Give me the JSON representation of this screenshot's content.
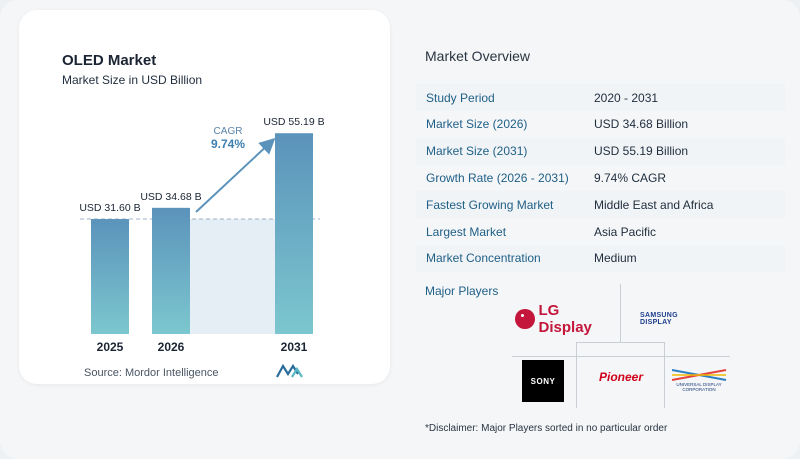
{
  "chart_data": {
    "type": "bar",
    "title": "OLED Market",
    "subtitle": "Market Size in USD Billion",
    "categories": [
      "2025",
      "2026",
      "2031"
    ],
    "values": [
      31.6,
      34.68,
      55.19
    ],
    "value_labels": [
      "USD 31.60 B",
      "USD 34.68 B",
      "USD 55.19 B"
    ],
    "ylim": [
      0,
      58
    ],
    "cagr_label": "CAGR",
    "cagr_value": "9.74%",
    "colors": {
      "bar_top": "#5b93bb",
      "bar_bottom": "#7cc7cf",
      "band": "#e6eef5",
      "arrow": "#5b93bb",
      "dashed": "#9bb3c8"
    }
  },
  "source": "Source:  Mordor Intelligence",
  "overview": {
    "title": "Market Overview",
    "rows": [
      {
        "label": "Study Period",
        "value": "2020 - 2031"
      },
      {
        "label": "Market Size (2026)",
        "value": "USD 34.68 Billion"
      },
      {
        "label": "Market Size (2031)",
        "value": "USD 55.19 Billion"
      },
      {
        "label": "Growth Rate (2026 - 2031)",
        "value": "9.74% CAGR"
      },
      {
        "label": "Fastest Growing Market",
        "value": "Middle East and Africa"
      },
      {
        "label": "Largest Market",
        "value": "Asia Pacific"
      },
      {
        "label": "Market Concentration",
        "value": "Medium"
      }
    ]
  },
  "players": {
    "title": "Major Players",
    "lg": "LG Display",
    "samsung": "SAMSUNG DISPLAY",
    "sony": "SONY",
    "pioneer": "Pioneer",
    "udc": [
      "UNIVERSAL DISPLAY",
      "CORPORATION"
    ]
  },
  "disclaimer": "*Disclaimer: Major Players sorted in no particular order"
}
